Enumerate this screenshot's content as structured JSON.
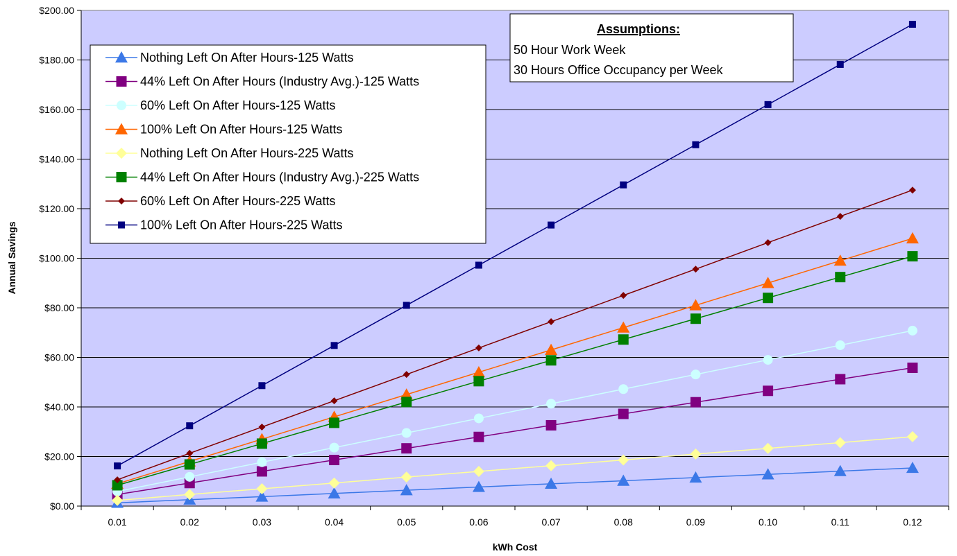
{
  "chart_data": {
    "type": "line",
    "xlabel": "kWh Cost",
    "ylabel": "Annual Savings",
    "categories": [
      "0.01",
      "0.02",
      "0.03",
      "0.04",
      "0.05",
      "0.06",
      "0.07",
      "0.08",
      "0.09",
      "0.10",
      "0.11",
      "0.12"
    ],
    "ylim": [
      0,
      200
    ],
    "y_ticks": [
      "$0.00",
      "$20.00",
      "$40.00",
      "$60.00",
      "$80.00",
      "$100.00",
      "$120.00",
      "$140.00",
      "$160.00",
      "$180.00",
      "$200.00"
    ],
    "grid": "horizontal",
    "plot_background": "#ccccff",
    "legend_position": "top-left",
    "series": [
      {
        "name": "Nothing Left On After Hours-125 Watts",
        "color": "#3b78e7",
        "marker": "triangle",
        "values": [
          1.3,
          2.6,
          3.8,
          5.1,
          6.4,
          7.7,
          9.0,
          10.2,
          11.5,
          12.8,
          14.1,
          15.4
        ]
      },
      {
        "name": "44% Left On After Hours (Industry Avg.)-125 Watts",
        "color": "#800080",
        "marker": "square",
        "values": [
          4.7,
          9.3,
          14.0,
          18.6,
          23.3,
          27.9,
          32.6,
          37.2,
          41.9,
          46.5,
          51.2,
          55.8
        ]
      },
      {
        "name": "60% Left On After Hours-125 Watts",
        "color": "#ccffff",
        "marker": "circle",
        "values": [
          5.9,
          11.8,
          17.7,
          23.6,
          29.5,
          35.4,
          41.3,
          47.2,
          53.1,
          59.0,
          64.9,
          70.8
        ]
      },
      {
        "name": "100% Left On After Hours-125 Watts",
        "color": "#ff6600",
        "marker": "triangle",
        "values": [
          9.0,
          18.0,
          27.0,
          36.0,
          45.0,
          54.0,
          63.0,
          72.0,
          81.0,
          90.0,
          99.0,
          108.0
        ]
      },
      {
        "name": "Nothing Left On After Hours-225 Watts",
        "color": "#ffff99",
        "marker": "diamond",
        "values": [
          2.3,
          4.7,
          7.0,
          9.3,
          11.7,
          14.0,
          16.3,
          18.6,
          21.0,
          23.3,
          25.6,
          28.0
        ]
      },
      {
        "name": "44% Left On After Hours (Industry Avg.)-225 Watts",
        "color": "#008000",
        "marker": "square",
        "values": [
          8.4,
          16.8,
          25.2,
          33.6,
          42.0,
          50.4,
          58.8,
          67.2,
          75.6,
          84.0,
          92.4,
          100.8
        ]
      },
      {
        "name": "60% Left On After Hours-225 Watts",
        "color": "#800000",
        "marker": "diamond-small",
        "values": [
          10.6,
          21.3,
          31.9,
          42.5,
          53.1,
          63.8,
          74.4,
          85.0,
          95.6,
          106.3,
          116.9,
          127.5
        ]
      },
      {
        "name": "100% Left On After Hours-225 Watts",
        "color": "#000080",
        "marker": "square-small",
        "values": [
          16.2,
          32.4,
          48.6,
          64.8,
          81.0,
          97.2,
          113.4,
          129.6,
          145.8,
          162.0,
          178.2,
          194.4
        ]
      }
    ],
    "annotation": {
      "title": "Assumptions",
      "title_suffix": ":",
      "lines": [
        "50 Hour Work Week",
        "30 Hours Office Occupancy per Week"
      ]
    }
  }
}
